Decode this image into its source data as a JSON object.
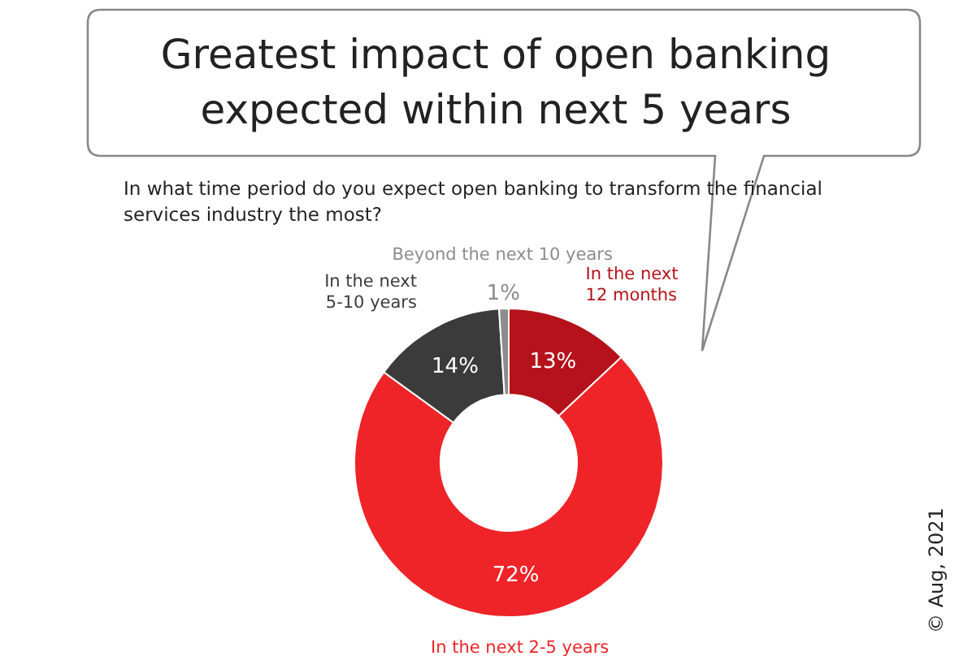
{
  "chart_data": {
    "type": "donut",
    "title": "Greatest impact of open banking expected within next 5 years",
    "subtitle": "In what time period do you expect open banking to transform the financial services industry the most?",
    "categories": [
      "In the next 12 months",
      "In the next 2-5 years",
      "In the next 5-10 years",
      "Beyond the next 10 years"
    ],
    "values": [
      13,
      72,
      14,
      1
    ],
    "value_labels": [
      "13%",
      "72%",
      "14%",
      "1%"
    ],
    "colors": [
      "#b5121b",
      "#ee2428",
      "#3b3b3b",
      "#8c8c8c"
    ],
    "annotations": [
      "© Aug, 2021"
    ]
  }
}
